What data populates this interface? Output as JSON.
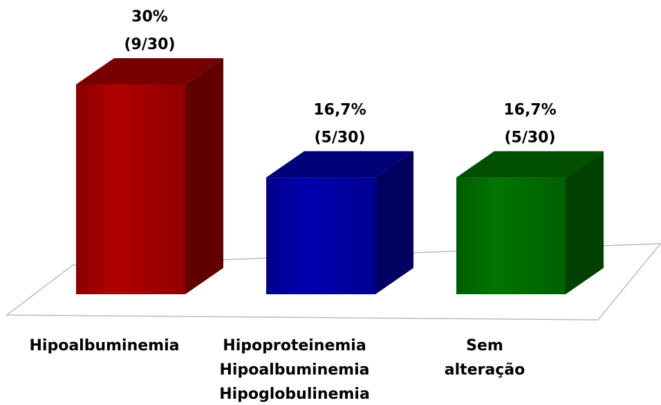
{
  "chart_data": {
    "type": "bar3d",
    "categories": [
      [
        "Hipoalbuminemia"
      ],
      [
        "Hipoproteinemia",
        "Hipoalbuminemia",
        "Hipoglobulinemia"
      ],
      [
        "Sem",
        "alteração"
      ]
    ],
    "values": [
      30,
      16.7,
      16.7
    ],
    "value_labels": [
      [
        "30%",
        "(9/30)"
      ],
      [
        "16,7%",
        "(5/30)"
      ],
      [
        "16,7%",
        "(5/30)"
      ]
    ],
    "colors": [
      "#a00000",
      "#0000a0",
      "#006a00"
    ]
  }
}
